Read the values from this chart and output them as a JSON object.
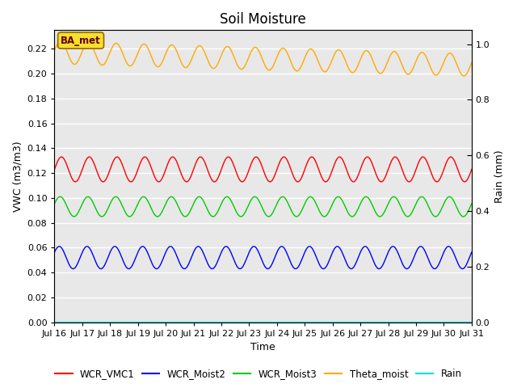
{
  "title": "Soil Moisture",
  "xlabel": "Time",
  "ylabel_left": "VWC (m3/m3)",
  "ylabel_right": "Rain (mm)",
  "annotation": "BA_met",
  "ylim_left": [
    0.0,
    0.235
  ],
  "ylim_right": [
    0.0,
    1.05
  ],
  "num_points": 1500,
  "series": {
    "WCR_VMC1": {
      "color": "#ff0000",
      "mean": 0.123,
      "amplitude": 0.01,
      "freq_cycles": 15,
      "phase": 0.0
    },
    "WCR_Moist2": {
      "color": "#0000ff",
      "mean": 0.052,
      "amplitude": 0.009,
      "freq_cycles": 15,
      "phase": 0.5
    },
    "WCR_Moist3": {
      "color": "#00cc00",
      "mean": 0.093,
      "amplitude": 0.008,
      "freq_cycles": 15,
      "phase": 0.3
    },
    "Theta_moist": {
      "color": "#ffaa00",
      "mean": 0.217,
      "amplitude": 0.009,
      "freq_cycles": 15,
      "phase": 0.2,
      "trend": -0.01
    },
    "Rain": {
      "color": "#00dddd",
      "mean": 0.0,
      "amplitude": 0.0,
      "freq_cycles": 0,
      "phase": 0.0
    }
  },
  "tick_labels": [
    "Jul 16",
    "Jul 17",
    "Jul 18",
    "Jul 19",
    "Jul 20",
    "Jul 21",
    "Jul 22",
    "Jul 23",
    "Jul 24",
    "Jul 25",
    "Jul 26",
    "Jul 27",
    "Jul 28",
    "Jul 29",
    "Jul 30",
    "Jul 31"
  ],
  "yticks_left": [
    0.0,
    0.02,
    0.04,
    0.06,
    0.08,
    0.1,
    0.12,
    0.14,
    0.16,
    0.18,
    0.2,
    0.22
  ],
  "yticks_right": [
    0.0,
    0.2,
    0.4,
    0.6,
    0.8,
    1.0
  ],
  "plot_bg_color": "#e8e8e8",
  "fig_bg_color": "#ffffff",
  "grid_color": "#ffffff",
  "title_fontsize": 12,
  "axis_fontsize": 9,
  "tick_fontsize": 8,
  "legend_fontsize": 8.5
}
